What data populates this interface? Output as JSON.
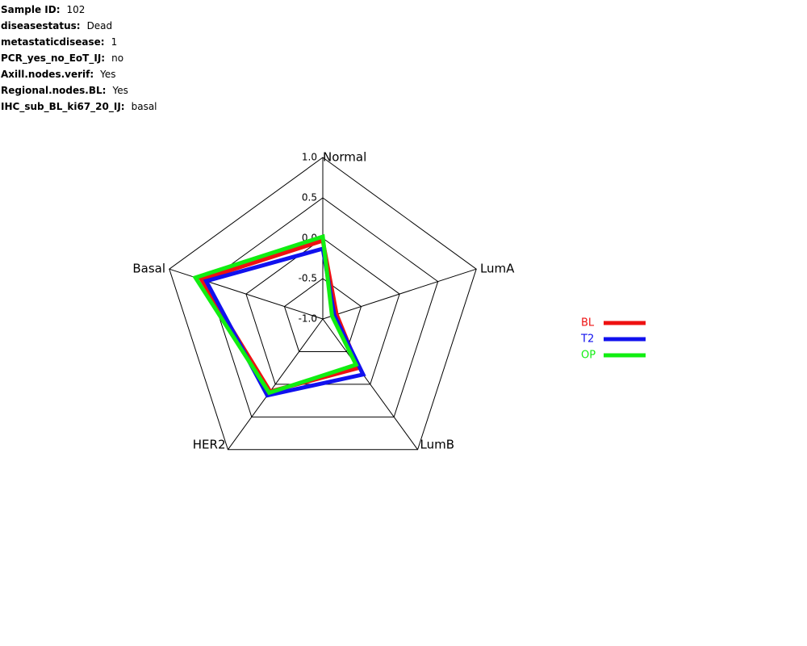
{
  "info": [
    {
      "label": "Sample ID:",
      "value": "102"
    },
    {
      "label": "diseasestatus:",
      "value": "Dead"
    },
    {
      "label": "metastaticdisease:",
      "value": "1"
    },
    {
      "label": "PCR_yes_no_EoT_IJ:",
      "value": "no"
    },
    {
      "label": "Axill.nodes.verif:",
      "value": "Yes"
    },
    {
      "label": "Regional.nodes.BL:",
      "value": "Yes"
    },
    {
      "label": "IHC_sub_BL_ki67_20_IJ:",
      "value": "basal"
    }
  ],
  "chart_data": {
    "type": "radar",
    "categories": [
      "Normal",
      "LumA",
      "LumB",
      "HER2",
      "Basal"
    ],
    "rlim": [
      -1.0,
      1.0
    ],
    "rticks": [
      {
        "value": 1.0,
        "label": "1.0"
      },
      0.5,
      {
        "value": 0.0,
        "label": "0.0"
      },
      -0.5,
      {
        "value": -1.0,
        "label": "-1.0"
      }
    ],
    "series": [
      {
        "name": "BL",
        "color": "#ee1111",
        "values": [
          -0.03,
          -0.82,
          -0.25,
          0.11,
          0.58
        ]
      },
      {
        "name": "T2",
        "color": "#1111ee",
        "values": [
          -0.13,
          -0.85,
          -0.15,
          0.17,
          0.52
        ]
      },
      {
        "name": "OP",
        "color": "#11ee11",
        "values": [
          0.02,
          -0.88,
          -0.3,
          0.13,
          0.66
        ]
      }
    ]
  }
}
